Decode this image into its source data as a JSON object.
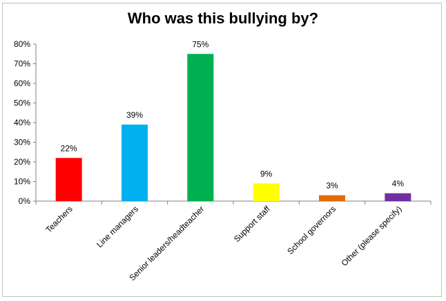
{
  "chart_data": {
    "type": "bar",
    "title": "Who was this bullying by?",
    "xlabel": "",
    "ylabel": "",
    "ylim": [
      0,
      80
    ],
    "y_ticks": [
      "0%",
      "10%",
      "20%",
      "30%",
      "40%",
      "50%",
      "60%",
      "70%",
      "80%"
    ],
    "categories": [
      "Teachers",
      "Line managers",
      "Senior leaders/headteacher",
      "Support staff",
      "School governors",
      "Other (please specify)"
    ],
    "values": [
      22,
      39,
      75,
      9,
      3,
      4
    ],
    "data_labels": [
      "22%",
      "39%",
      "75%",
      "9%",
      "3%",
      "4%"
    ],
    "colors": [
      "#ff0000",
      "#00b0f0",
      "#00b050",
      "#ffff00",
      "#e46c0a",
      "#7030a0"
    ],
    "grid": false,
    "legend": "none"
  }
}
